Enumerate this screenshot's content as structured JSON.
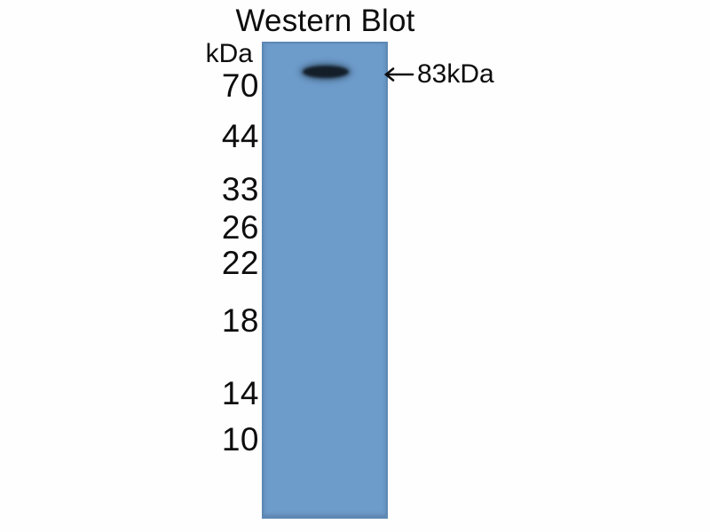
{
  "figure": {
    "title": "Western Blot",
    "unit_label": "kDa",
    "markers": [
      "70",
      "44",
      "33",
      "26",
      "22",
      "18",
      "14",
      "10"
    ],
    "band_annotation": {
      "arrow": "left-arrow",
      "label": "83kDa"
    },
    "colors": {
      "background": "#fefefe",
      "lane_blue": "#6d9bca",
      "lane_edge": "#5d89b5",
      "band_dark": "#131e29",
      "text": "#0d0d0d"
    }
  },
  "chart_data": {
    "type": "western-blot",
    "title": "Western Blot",
    "y_axis": {
      "label": "kDa",
      "tick_values": [
        70,
        44,
        33,
        26,
        22,
        18,
        14,
        10
      ],
      "scale": "molecular-weight-ladder"
    },
    "lanes": [
      {
        "lane": 1,
        "bands": [
          {
            "molecular_weight_kda": 83,
            "intensity": "strong",
            "annotation": "83kDa",
            "position": "just above the 70 kDa marker"
          }
        ]
      }
    ],
    "legend_position": "none",
    "grid": false,
    "notes": "Single-lane western blot on a blue membrane; one strong dark band above the 70 kDa marker, indicated by a left-pointing arrow labeled 83kDa."
  }
}
